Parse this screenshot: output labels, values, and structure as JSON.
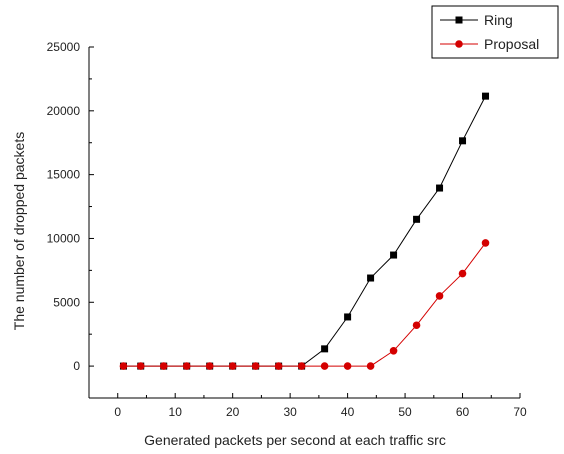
{
  "chart_data": {
    "type": "line",
    "title": "",
    "xlabel": "Generated packets per second at each traffic src",
    "ylabel": "The number of dropped packets",
    "xlim": [
      -5,
      70
    ],
    "ylim": [
      -2500,
      25000
    ],
    "xticks": [
      0,
      10,
      20,
      30,
      40,
      50,
      60,
      70
    ],
    "yticks": [
      0,
      5000,
      10000,
      15000,
      20000,
      25000
    ],
    "x_tick_labels": [
      "0",
      "10",
      "20",
      "30",
      "40",
      "50",
      "60",
      "70"
    ],
    "y_tick_labels": [
      "0",
      "5000",
      "10000",
      "15000",
      "20000",
      "25000"
    ],
    "grid": false,
    "legend_position": "top-right",
    "series": [
      {
        "name": "Ring",
        "color": "#000000",
        "marker": "square",
        "x": [
          1,
          4,
          8,
          12,
          16,
          20,
          24,
          28,
          32,
          36,
          40,
          44,
          48,
          52,
          56,
          60,
          64
        ],
        "y": [
          0,
          0,
          0,
          0,
          0,
          0,
          0,
          0,
          0,
          1350,
          3850,
          6900,
          8700,
          11500,
          13950,
          17650,
          21150
        ]
      },
      {
        "name": "Proposal",
        "color": "#d40000",
        "marker": "circle",
        "x": [
          1,
          4,
          8,
          12,
          16,
          20,
          24,
          28,
          32,
          36,
          40,
          44,
          48,
          52,
          56,
          60,
          64
        ],
        "y": [
          0,
          0,
          0,
          0,
          0,
          0,
          0,
          0,
          0,
          0,
          0,
          0,
          1200,
          3200,
          5500,
          7250,
          9650
        ]
      }
    ]
  }
}
